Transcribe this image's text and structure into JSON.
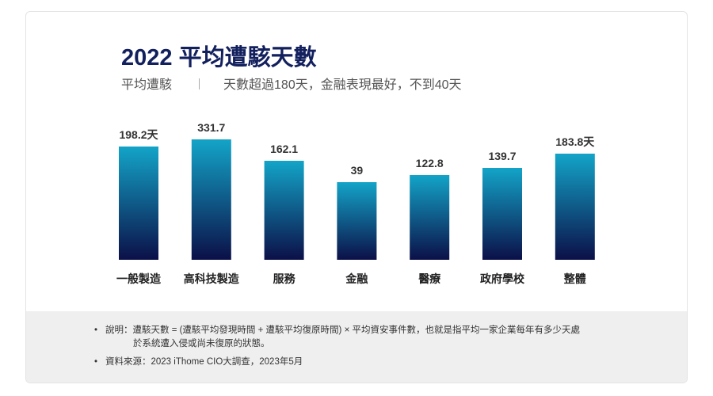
{
  "title": "2022 平均遭駭天數",
  "subtitle": {
    "label": "平均遭駭",
    "text": "天數超過180天，金融表現最好，不到40天"
  },
  "chart_data": {
    "type": "bar",
    "title": "2022 平均遭駭天數",
    "categories": [
      "一般製造",
      "高科技製造",
      "服務",
      "金融",
      "醫療",
      "政府學校",
      "整體"
    ],
    "values": [
      198.2,
      331.7,
      162.1,
      39,
      122.8,
      139.7,
      183.8
    ],
    "value_labels": [
      "198.2天",
      "331.7",
      "162.1",
      "39",
      "122.8",
      "139.7",
      "183.8天"
    ],
    "colors": {
      "top": "#13a4c8",
      "bottom": "#0b1048"
    }
  },
  "footer": {
    "notes": [
      {
        "line1": "說明：遭駭天數 = (遭駭平均發現時間 + 遭駭平均復原時間) × 平均資安事件數，也就是指平均一家企業每年有多少天處",
        "line2": "於系統遭入侵或尚未復原的狀態。"
      },
      {
        "line1": "資料來源：2023 iThome CIO大調查，2023年5月",
        "line2": ""
      }
    ]
  }
}
